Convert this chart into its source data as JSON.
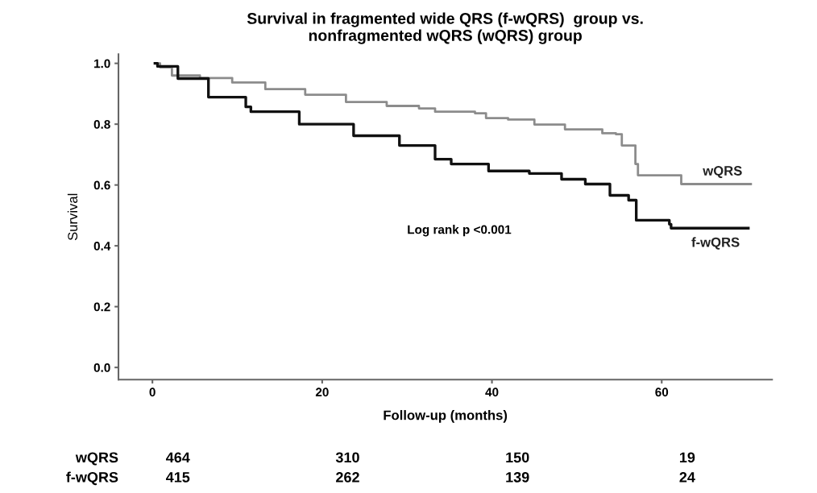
{
  "chart_data": {
    "type": "step",
    "title": "Survival in fragmented wide QRS (f-wQRS)  group vs.\nnonfragmented wQRS (wQRS) group",
    "xlabel": "Follow-up (months)",
    "ylabel": "Survival",
    "xlim": [
      -4,
      73
    ],
    "ylim": [
      -0.04,
      1.03
    ],
    "xticks": [
      0,
      20,
      40,
      60
    ],
    "yticks": [
      {
        "value": 0,
        "label": "0.0"
      },
      {
        "value": 0.2,
        "label": "0.2"
      },
      {
        "value": 0.4,
        "label": "0.4"
      },
      {
        "value": 0.6,
        "label": "0.6"
      },
      {
        "value": 0.8,
        "label": "0.8"
      },
      {
        "value": 1,
        "label": "1.0"
      }
    ],
    "grid": false,
    "legend": false,
    "series": [
      {
        "name": "wQRS",
        "color": "#8c8c8c",
        "x": [
          0.3,
          0.9,
          2.3,
          5.6,
          9.4,
          13.3,
          18,
          22.8,
          27.6,
          31.4,
          33.3,
          38,
          39.3,
          41.9,
          45,
          48.6,
          52.7,
          53,
          54.6,
          55.3,
          56.9,
          57.2,
          62.2,
          62.3,
          70.5
        ],
        "values": [
          1.0,
          0.987,
          0.96,
          0.952,
          0.937,
          0.915,
          0.897,
          0.873,
          0.86,
          0.852,
          0.841,
          0.836,
          0.82,
          0.815,
          0.799,
          0.783,
          0.783,
          0.77,
          0.767,
          0.73,
          0.669,
          0.632,
          0.632,
          0.603,
          0.603
        ]
      },
      {
        "name": "f-wQRS",
        "color": "#111111",
        "x": [
          0.3,
          0.6,
          3,
          6.6,
          11,
          11.6,
          17.3,
          23.7,
          29.1,
          33.3,
          35.2,
          39.6,
          44.4,
          48.2,
          51,
          53.9,
          56.1,
          57,
          60.9,
          61.1,
          70.2
        ],
        "values": [
          1.0,
          0.99,
          0.95,
          0.889,
          0.857,
          0.841,
          0.8,
          0.762,
          0.73,
          0.685,
          0.669,
          0.646,
          0.638,
          0.619,
          0.603,
          0.566,
          0.55,
          0.484,
          0.471,
          0.458,
          0.458
        ]
      }
    ],
    "annotations": [
      "Log rank p <0.001",
      "wQRS",
      "464",
      "310",
      "150",
      "19",
      "f-wQRS",
      "415",
      "262",
      "139",
      "24"
    ]
  }
}
